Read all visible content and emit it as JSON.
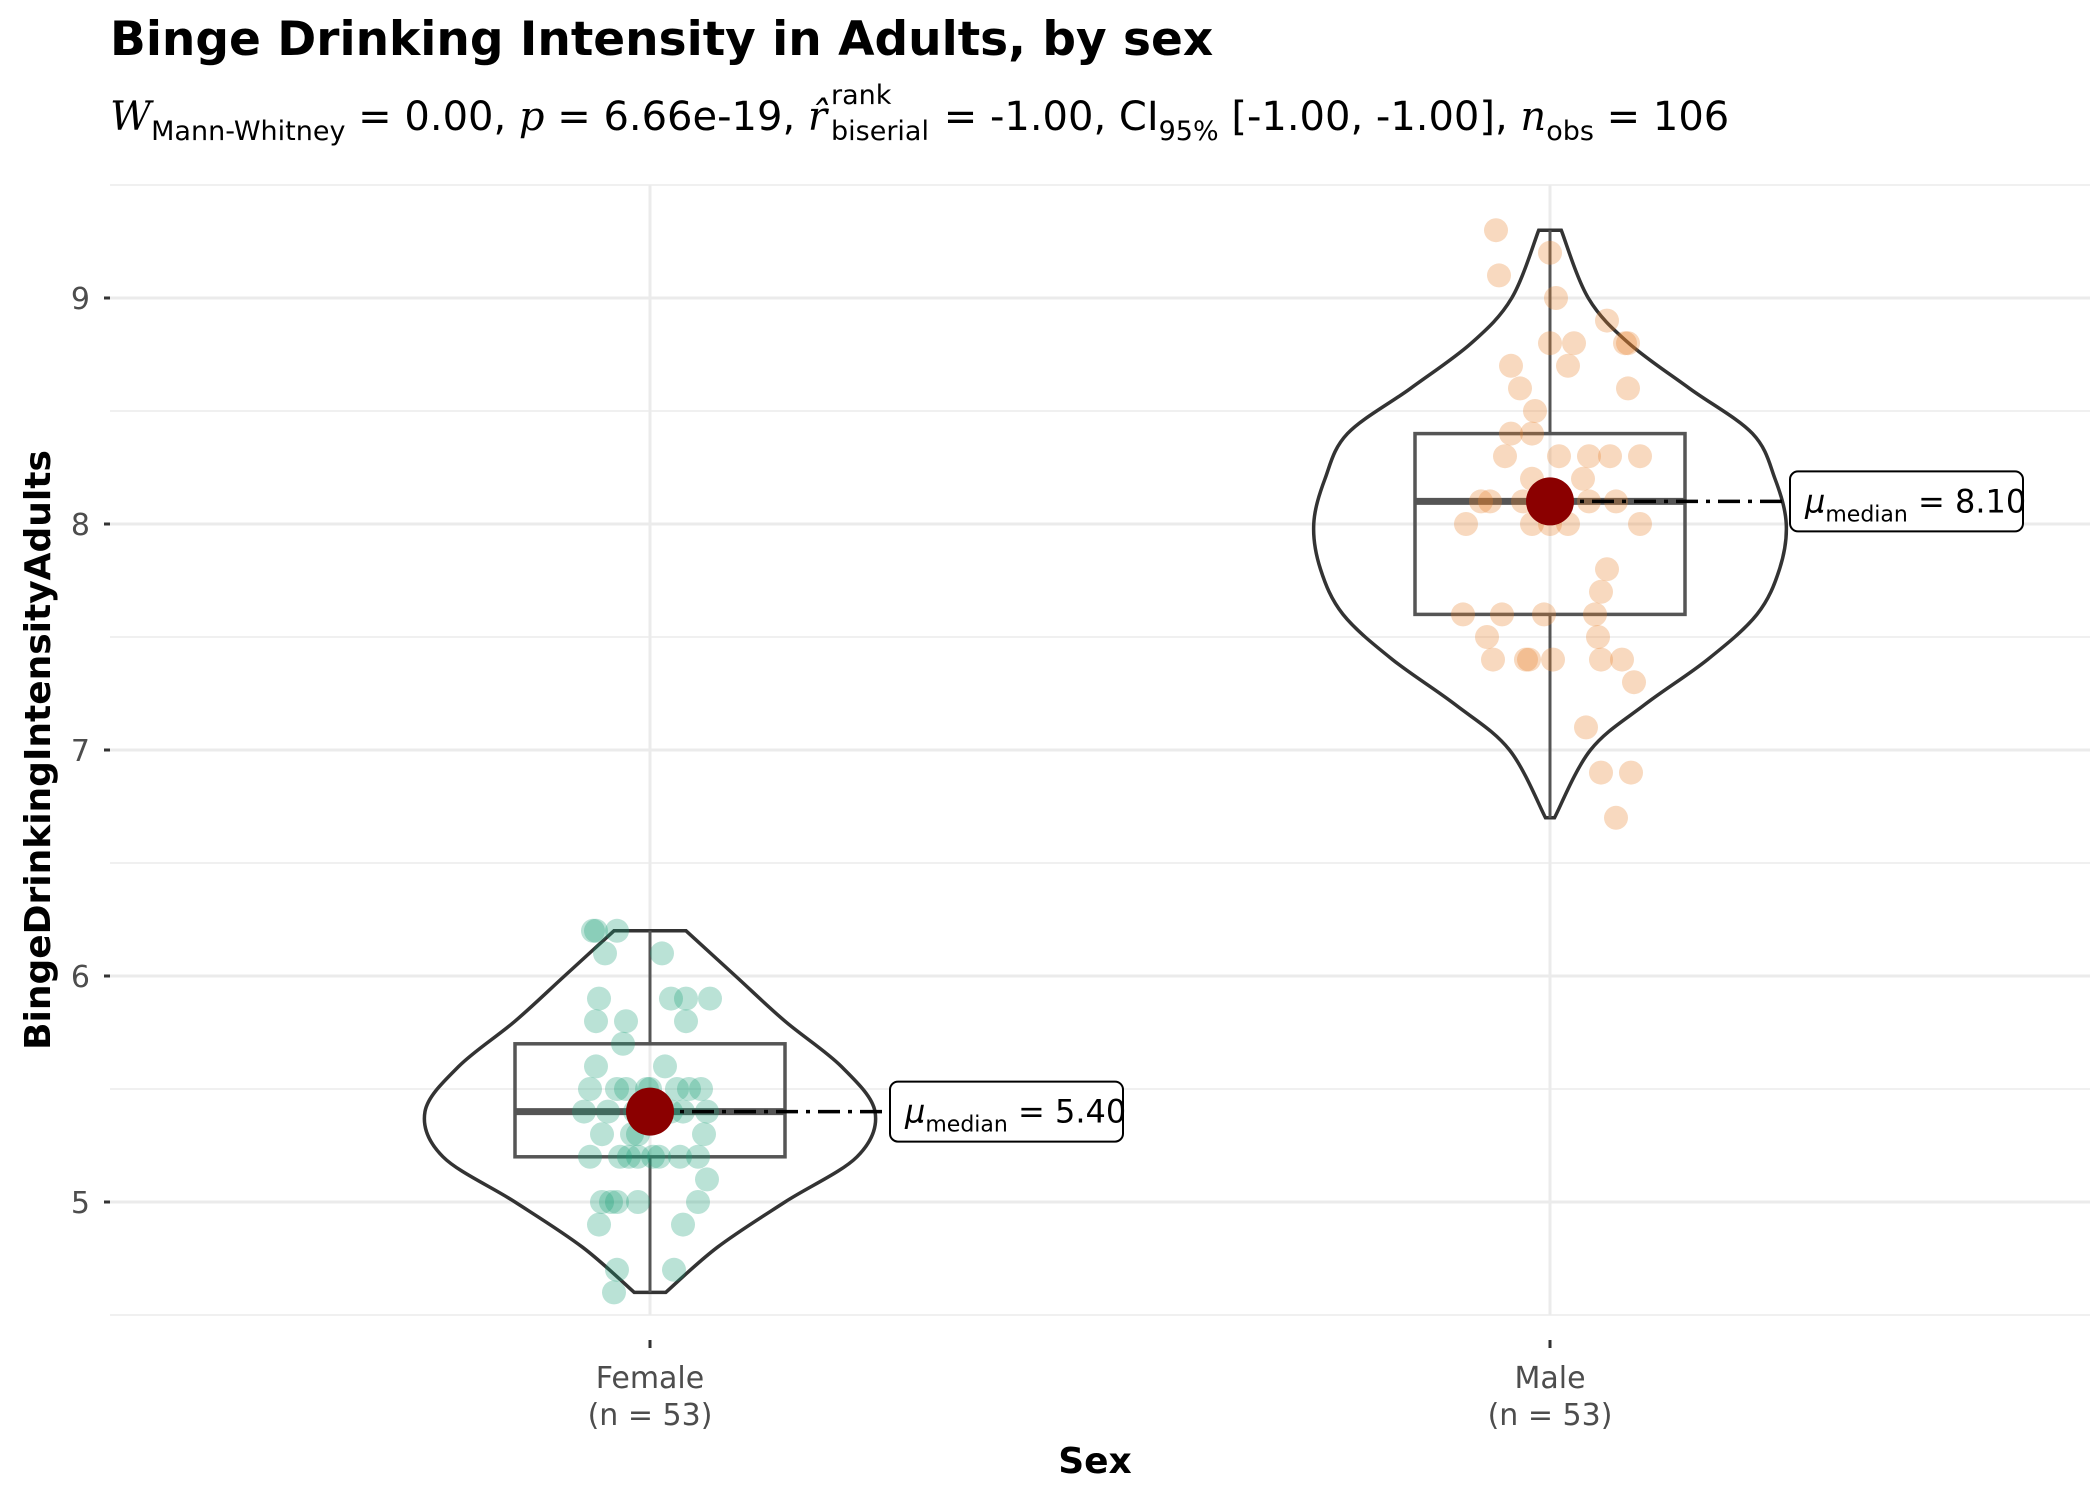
{
  "title": "Binge Drinking Intensity in Adults, by sex",
  "subtitle": {
    "stat_symbol": "W",
    "stat_sub": "Mann-Whitney",
    "stat_value": " = 0.00, ",
    "p_symbol": "p",
    "p_value": " = 6.66e-19, ",
    "r_symbol": "r̂",
    "r_sup": "rank",
    "r_sub": "biserial",
    "r_value": " = -1.00, CI",
    "ci_sub": "95%",
    "ci_value": " [-1.00, -1.00], ",
    "n_symbol": "n",
    "n_sub": "obs",
    "n_value": " = 106"
  },
  "chart_data": {
    "type": "violin-box-scatter",
    "title": "Binge Drinking Intensity in Adults, by sex",
    "xlabel": "Sex",
    "ylabel": "BingeDrinkingIntensityAdults",
    "ylim": [
      4.5,
      9.5
    ],
    "yticks": [
      5,
      6,
      7,
      8,
      9
    ],
    "grid": true,
    "groups": [
      {
        "name": "Female",
        "n_label": "(n = 53)",
        "color": "#1b9e77",
        "median": 5.4,
        "q1": 5.2,
        "q3": 5.7,
        "min": 4.6,
        "max": 6.2,
        "median_label_prefix": "μ",
        "median_label_sub": "median",
        "median_label_value": " = 5.40",
        "points": [
          {
            "j": -0.19,
            "y": 6.2
          },
          {
            "j": -0.11,
            "y": 6.2
          },
          {
            "j": -0.15,
            "y": 6.1
          },
          {
            "j": 0.04,
            "y": 6.1
          },
          {
            "j": -0.17,
            "y": 5.9
          },
          {
            "j": 0.07,
            "y": 5.9
          },
          {
            "j": 0.12,
            "y": 5.9
          },
          {
            "j": 0.2,
            "y": 5.9
          },
          {
            "j": -0.18,
            "y": 5.8
          },
          {
            "j": -0.08,
            "y": 5.8
          },
          {
            "j": 0.12,
            "y": 5.8
          },
          {
            "j": -0.09,
            "y": 5.7
          },
          {
            "j": -0.18,
            "y": 5.6
          },
          {
            "j": 0.05,
            "y": 5.6
          },
          {
            "j": -0.2,
            "y": 5.5
          },
          {
            "j": -0.11,
            "y": 5.5
          },
          {
            "j": -0.01,
            "y": 5.5
          },
          {
            "j": 0.09,
            "y": 5.5
          },
          {
            "j": 0.17,
            "y": 5.5
          },
          {
            "j": -0.22,
            "y": 5.4
          },
          {
            "j": -0.14,
            "y": 5.4
          },
          {
            "j": -0.05,
            "y": 5.4
          },
          {
            "j": 0.03,
            "y": 5.4
          },
          {
            "j": 0.11,
            "y": 5.4
          },
          {
            "j": 0.19,
            "y": 5.4
          },
          {
            "j": -0.16,
            "y": 5.3
          },
          {
            "j": -0.04,
            "y": 5.3
          },
          {
            "j": 0.18,
            "y": 5.3
          },
          {
            "j": -0.2,
            "y": 5.2
          },
          {
            "j": -0.1,
            "y": 5.2
          },
          {
            "j": -0.04,
            "y": 5.2
          },
          {
            "j": 0.03,
            "y": 5.2
          },
          {
            "j": 0.1,
            "y": 5.2
          },
          {
            "j": 0.16,
            "y": 5.2
          },
          {
            "j": 0.19,
            "y": 5.1
          },
          {
            "j": -0.16,
            "y": 5.0
          },
          {
            "j": -0.11,
            "y": 5.0
          },
          {
            "j": -0.04,
            "y": 5.0
          },
          {
            "j": 0.16,
            "y": 5.0
          },
          {
            "j": -0.17,
            "y": 4.9
          },
          {
            "j": 0.11,
            "y": 4.9
          },
          {
            "j": -0.11,
            "y": 4.7
          },
          {
            "j": 0.08,
            "y": 4.7
          },
          {
            "j": -0.12,
            "y": 4.6
          },
          {
            "j": -0.13,
            "y": 5.0
          },
          {
            "j": -0.07,
            "y": 5.2
          },
          {
            "j": 0.0,
            "y": 5.5
          },
          {
            "j": 0.07,
            "y": 5.4
          },
          {
            "j": -0.06,
            "y": 5.3
          },
          {
            "j": 0.13,
            "y": 5.5
          },
          {
            "j": -0.18,
            "y": 6.2
          },
          {
            "j": 0.01,
            "y": 5.2
          },
          {
            "j": -0.08,
            "y": 5.5
          }
        ],
        "violin": [
          [
            4.6,
            0.07
          ],
          [
            4.8,
            0.3
          ],
          [
            5.0,
            0.6
          ],
          [
            5.2,
            0.92
          ],
          [
            5.4,
            1.0
          ],
          [
            5.6,
            0.85
          ],
          [
            5.8,
            0.6
          ],
          [
            6.0,
            0.38
          ],
          [
            6.2,
            0.16
          ]
        ]
      },
      {
        "name": "Male",
        "n_label": "(n = 53)",
        "color": "#e8822a",
        "median": 8.1,
        "q1": 7.6,
        "q3": 8.4,
        "min": 6.7,
        "max": 9.3,
        "median_label_prefix": "μ",
        "median_label_sub": "median",
        "median_label_value": " = 8.10",
        "points": [
          {
            "j": -0.18,
            "y": 9.3
          },
          {
            "j": 0.0,
            "y": 9.2
          },
          {
            "j": -0.17,
            "y": 9.1
          },
          {
            "j": 0.02,
            "y": 9.0
          },
          {
            "j": 0.19,
            "y": 8.9
          },
          {
            "j": 0.08,
            "y": 8.8
          },
          {
            "j": 0.25,
            "y": 8.8
          },
          {
            "j": 0.26,
            "y": 8.8
          },
          {
            "j": 0.0,
            "y": 8.8
          },
          {
            "j": -0.13,
            "y": 8.7
          },
          {
            "j": 0.06,
            "y": 8.7
          },
          {
            "j": -0.1,
            "y": 8.6
          },
          {
            "j": 0.26,
            "y": 8.6
          },
          {
            "j": -0.05,
            "y": 8.5
          },
          {
            "j": -0.06,
            "y": 8.4
          },
          {
            "j": -0.13,
            "y": 8.4
          },
          {
            "j": -0.15,
            "y": 8.3
          },
          {
            "j": 0.03,
            "y": 8.3
          },
          {
            "j": 0.13,
            "y": 8.3
          },
          {
            "j": 0.2,
            "y": 8.3
          },
          {
            "j": 0.3,
            "y": 8.3
          },
          {
            "j": -0.06,
            "y": 8.2
          },
          {
            "j": 0.11,
            "y": 8.2
          },
          {
            "j": -0.2,
            "y": 8.1
          },
          {
            "j": -0.09,
            "y": 8.1
          },
          {
            "j": 0.0,
            "y": 8.1
          },
          {
            "j": 0.13,
            "y": 8.1
          },
          {
            "j": 0.22,
            "y": 8.1
          },
          {
            "j": -0.28,
            "y": 8.0
          },
          {
            "j": -0.06,
            "y": 8.0
          },
          {
            "j": 0.06,
            "y": 8.0
          },
          {
            "j": 0.0,
            "y": 8.0
          },
          {
            "j": 0.19,
            "y": 7.8
          },
          {
            "j": 0.17,
            "y": 7.7
          },
          {
            "j": -0.29,
            "y": 7.6
          },
          {
            "j": -0.16,
            "y": 7.6
          },
          {
            "j": 0.15,
            "y": 7.6
          },
          {
            "j": -0.21,
            "y": 7.5
          },
          {
            "j": 0.16,
            "y": 7.5
          },
          {
            "j": -0.19,
            "y": 7.4
          },
          {
            "j": -0.07,
            "y": 7.4
          },
          {
            "j": 0.01,
            "y": 7.4
          },
          {
            "j": 0.17,
            "y": 7.4
          },
          {
            "j": 0.24,
            "y": 7.4
          },
          {
            "j": 0.28,
            "y": 7.3
          },
          {
            "j": 0.12,
            "y": 7.1
          },
          {
            "j": 0.17,
            "y": 6.9
          },
          {
            "j": 0.27,
            "y": 6.9
          },
          {
            "j": 0.22,
            "y": 6.7
          },
          {
            "j": -0.23,
            "y": 8.1
          },
          {
            "j": -0.02,
            "y": 7.6
          },
          {
            "j": 0.3,
            "y": 8.0
          },
          {
            "j": -0.08,
            "y": 7.4
          }
        ],
        "violin": [
          [
            6.7,
            0.02
          ],
          [
            7.0,
            0.18
          ],
          [
            7.2,
            0.42
          ],
          [
            7.4,
            0.7
          ],
          [
            7.6,
            0.92
          ],
          [
            7.8,
            1.02
          ],
          [
            8.0,
            1.05
          ],
          [
            8.2,
            1.0
          ],
          [
            8.4,
            0.9
          ],
          [
            8.6,
            0.62
          ],
          [
            8.8,
            0.35
          ],
          [
            9.0,
            0.17
          ],
          [
            9.3,
            0.05
          ]
        ]
      }
    ]
  }
}
